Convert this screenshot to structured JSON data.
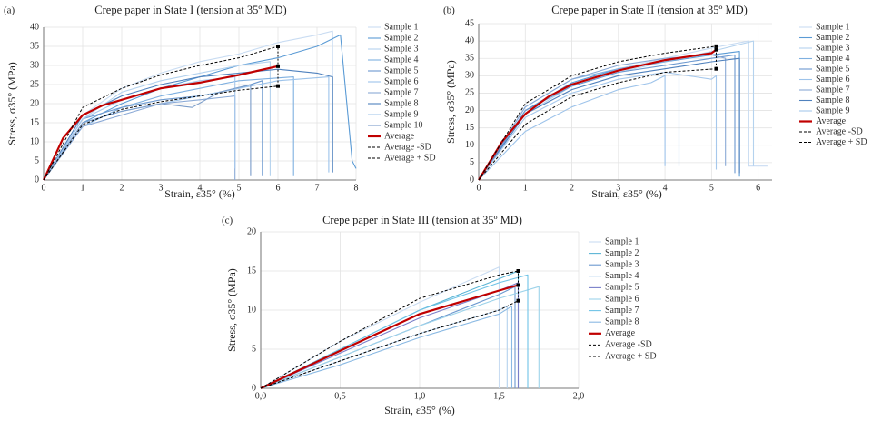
{
  "chart_data": [
    {
      "type": "line",
      "panel_label": "(a)",
      "title": "Crepe paper in State I (tension at 35º MD)",
      "x_label": "Strain, ε35° (%)",
      "y_label": "Stress, σ35° (MPa)",
      "xlim": [
        0,
        8
      ],
      "ylim": [
        0,
        40
      ],
      "xticks": [
        0,
        1,
        2,
        3,
        4,
        5,
        6,
        7,
        8
      ],
      "yticks": [
        0,
        5,
        10,
        15,
        20,
        25,
        30,
        35,
        40
      ],
      "grid": true,
      "series": [
        {
          "name": "Sample 1",
          "color": "#c9dcf2",
          "x": [
            0,
            1,
            2,
            3,
            4,
            5,
            6,
            7,
            7.4,
            7.4
          ],
          "values": [
            0,
            17,
            24,
            28,
            31,
            33,
            36,
            38,
            39,
            2
          ]
        },
        {
          "name": "Sample 2",
          "color": "#5b9bd5",
          "x": [
            0,
            1,
            2,
            3,
            4,
            5,
            6,
            7,
            7.6,
            7.9,
            8
          ],
          "values": [
            0,
            15,
            20,
            24,
            27,
            30,
            32,
            35,
            38,
            5,
            3
          ]
        },
        {
          "name": "Sample 3",
          "color": "#b4d2ee",
          "x": [
            0,
            1,
            2,
            3,
            4,
            5,
            5.8,
            5.8
          ],
          "values": [
            0,
            16,
            23,
            26,
            28,
            30,
            31,
            1
          ]
        },
        {
          "name": "Sample 4",
          "color": "#7fb0e0",
          "x": [
            0,
            1,
            2,
            3,
            4,
            5,
            6.4,
            6.4
          ],
          "values": [
            0,
            14,
            19,
            22,
            24,
            26,
            27,
            1
          ]
        },
        {
          "name": "Sample 5",
          "color": "#6b98cf",
          "x": [
            0,
            1,
            2,
            3,
            4,
            5,
            5.6,
            5.6
          ],
          "values": [
            0,
            16,
            19,
            21,
            22,
            24,
            26,
            1
          ]
        },
        {
          "name": "Sample 6",
          "color": "#9dc3ea",
          "x": [
            0,
            1,
            2,
            3,
            4,
            5,
            6,
            7.3,
            7.3
          ],
          "values": [
            0,
            15,
            18,
            20,
            22,
            24,
            26,
            27,
            2
          ]
        },
        {
          "name": "Sample 7",
          "color": "#8aa9d6",
          "x": [
            0,
            1,
            2,
            3,
            4,
            4.9,
            4.9
          ],
          "values": [
            0,
            14,
            17,
            20,
            21,
            22,
            0
          ]
        },
        {
          "name": "Sample 8",
          "color": "#4f81bd",
          "x": [
            0,
            1,
            2,
            3,
            4,
            5,
            6,
            7,
            7.4,
            7.4
          ],
          "values": [
            0,
            17,
            22,
            25,
            27,
            28,
            29,
            28,
            27,
            2
          ]
        },
        {
          "name": "Sample 9",
          "color": "#a6c8ec",
          "x": [
            0,
            1,
            2,
            3,
            4,
            4.9,
            4.9
          ],
          "values": [
            0,
            16,
            21,
            24,
            26,
            27,
            3
          ]
        },
        {
          "name": "Sample 10",
          "color": "#7a9cc9",
          "x": [
            0,
            1,
            2,
            3,
            3.8,
            4.5,
            5.3,
            5.3
          ],
          "values": [
            0,
            15,
            18,
            20,
            19,
            23,
            25,
            1
          ]
        },
        {
          "name": "Average",
          "color": "#c00000",
          "x": [
            0,
            0.5,
            1,
            1.5,
            2,
            3,
            4,
            5,
            6
          ],
          "values": [
            0,
            11,
            17,
            19.5,
            21,
            24,
            25.5,
            27.5,
            29.8
          ]
        },
        {
          "name": "Average -SD",
          "color": "#000000",
          "x": [
            0,
            1,
            2,
            3,
            4,
            5,
            6
          ],
          "values": [
            0,
            14.5,
            18.5,
            20.5,
            22,
            23.5,
            24.6
          ]
        },
        {
          "name": "Average + SD",
          "color": "#000000",
          "x": [
            0,
            1,
            2,
            3,
            4,
            5,
            6
          ],
          "values": [
            0,
            19,
            24,
            27.5,
            30,
            32,
            35
          ]
        }
      ]
    },
    {
      "type": "line",
      "panel_label": "(b)",
      "title": "Crepe paper in State II (tension at 35º MD)",
      "x_label": "Strain, ε35° (%)",
      "y_label": "Stress, σ35° (MPa)",
      "xlim": [
        0,
        6.3
      ],
      "ylim": [
        0,
        45
      ],
      "xticks": [
        0,
        1,
        2,
        3,
        4,
        5,
        6
      ],
      "yticks": [
        0,
        5,
        10,
        15,
        20,
        25,
        30,
        35,
        40,
        45
      ],
      "grid": true,
      "series": [
        {
          "name": "Sample 1",
          "color": "#c9dcf2",
          "x": [
            0,
            1,
            2,
            3,
            4,
            5,
            5.8,
            5.8,
            6.2
          ],
          "values": [
            0,
            20,
            28,
            32,
            35,
            38,
            40,
            4,
            4
          ]
        },
        {
          "name": "Sample 2",
          "color": "#5b9bd5",
          "x": [
            0,
            1,
            2,
            3,
            4,
            5,
            5.6,
            5.6
          ],
          "values": [
            0,
            20,
            28,
            32,
            34,
            36,
            37,
            1
          ]
        },
        {
          "name": "Sample 3",
          "color": "#b4d2ee",
          "x": [
            0,
            1,
            2,
            3,
            4,
            5,
            5.9,
            5.9
          ],
          "values": [
            0,
            19,
            27,
            31,
            34,
            37,
            40,
            4
          ]
        },
        {
          "name": "Sample 4",
          "color": "#7fb0e0",
          "x": [
            0,
            1,
            2,
            3,
            4,
            4.3,
            4.3
          ],
          "values": [
            0,
            21,
            29,
            32,
            34,
            35,
            4
          ]
        },
        {
          "name": "Sample 5",
          "color": "#6b98cf",
          "x": [
            0,
            1,
            2,
            3,
            4,
            5,
            5.5,
            5.5
          ],
          "values": [
            0,
            20,
            27,
            31,
            33,
            35,
            36,
            2
          ]
        },
        {
          "name": "Sample 6",
          "color": "#9dc3ea",
          "x": [
            0,
            1,
            2,
            3,
            3.7,
            4,
            4
          ],
          "values": [
            0,
            14,
            21,
            26,
            28,
            30,
            4
          ]
        },
        {
          "name": "Sample 7",
          "color": "#8aa9d6",
          "x": [
            0,
            1,
            2,
            3,
            4,
            5,
            5.3,
            5.3
          ],
          "values": [
            0,
            21,
            29,
            33,
            35,
            36,
            35,
            4
          ]
        },
        {
          "name": "Sample 8",
          "color": "#4f81bd",
          "x": [
            0,
            1,
            2,
            3,
            4,
            5,
            5.6,
            5.6
          ],
          "values": [
            0,
            19,
            26,
            30,
            32,
            34,
            35,
            2
          ]
        },
        {
          "name": "Sample 9",
          "color": "#a6c8ec",
          "x": [
            0,
            1,
            2,
            3,
            4,
            5,
            5.1,
            5.1
          ],
          "values": [
            0,
            18,
            25,
            29,
            31,
            29,
            30,
            3
          ]
        },
        {
          "name": "Average",
          "color": "#c00000",
          "x": [
            0,
            0.5,
            1,
            1.5,
            2,
            3,
            4,
            5,
            5.1
          ],
          "values": [
            0,
            11,
            19,
            24,
            27.5,
            31.5,
            34.5,
            36.5,
            37.5
          ]
        },
        {
          "name": "Average -SD",
          "color": "#000000",
          "x": [
            0,
            1,
            2,
            3,
            4,
            5.1
          ],
          "values": [
            0,
            16,
            24,
            28,
            31,
            32
          ]
        },
        {
          "name": "Average + SD",
          "color": "#000000",
          "x": [
            0,
            1,
            2,
            3,
            4,
            5.1
          ],
          "values": [
            0,
            22,
            30,
            34,
            36.5,
            38.5
          ]
        }
      ]
    },
    {
      "type": "line",
      "panel_label": "(c)",
      "title": "Crepe paper in State III (tension at 35º MD)",
      "x_label": "Strain, ε35° (%)",
      "y_label": "Stress, σ35° (MPa)",
      "xlim": [
        0,
        2
      ],
      "ylim": [
        0,
        20
      ],
      "xticks": [
        {
          "value": 0,
          "label": "0,0"
        },
        {
          "value": 0.5,
          "label": "0,5"
        },
        {
          "value": 1,
          "label": "1,0"
        },
        {
          "value": 1.5,
          "label": "1,5"
        },
        {
          "value": 2,
          "label": "2,0"
        }
      ],
      "yticks": [
        0,
        5,
        10,
        15,
        20
      ],
      "grid": true,
      "series": [
        {
          "name": "Sample 1",
          "color": "#c9dcf2",
          "x": [
            0,
            0.5,
            1,
            1.5,
            1.5
          ],
          "values": [
            0,
            6,
            11,
            15.5,
            0
          ]
        },
        {
          "name": "Sample 2",
          "color": "#5bb5d5",
          "x": [
            0,
            0.5,
            1,
            1.5,
            1.62,
            1.62
          ],
          "values": [
            0,
            5,
            10,
            14,
            15,
            0
          ]
        },
        {
          "name": "Sample 3",
          "color": "#6b98cf",
          "x": [
            0,
            0.5,
            1,
            1.5,
            1.6,
            1.6
          ],
          "values": [
            0,
            4,
            8,
            12,
            13,
            0
          ]
        },
        {
          "name": "Sample 4",
          "color": "#b4d2ee",
          "x": [
            0,
            0.5,
            1,
            1.5,
            1.55,
            1.55
          ],
          "values": [
            0,
            3.5,
            7,
            10,
            10.5,
            0
          ]
        },
        {
          "name": "Sample 5",
          "color": "#7a7fc9",
          "x": [
            0,
            0.5,
            1,
            1.5,
            1.62,
            1.62
          ],
          "values": [
            0,
            4.5,
            9,
            12.5,
            13.5,
            0
          ]
        },
        {
          "name": "Sample 6",
          "color": "#9dd3ea",
          "x": [
            0,
            0.5,
            1,
            1.5,
            1.75,
            1.75
          ],
          "values": [
            0,
            4,
            8,
            11.5,
            13,
            0
          ]
        },
        {
          "name": "Sample 7",
          "color": "#6fc3e6",
          "x": [
            0,
            0.5,
            1,
            1.5,
            1.68,
            1.68
          ],
          "values": [
            0,
            5,
            10,
            13.5,
            14.5,
            0
          ]
        },
        {
          "name": "Sample 8",
          "color": "#8ab9e3",
          "x": [
            0,
            0.5,
            1,
            1.5,
            1.58,
            1.58
          ],
          "values": [
            0,
            3,
            6.5,
            9.5,
            10.5,
            0
          ]
        },
        {
          "name": "Average",
          "color": "#c00000",
          "x": [
            0,
            0.5,
            1,
            1.5,
            1.62
          ],
          "values": [
            0,
            4.8,
            9.5,
            12.5,
            13.2
          ]
        },
        {
          "name": "Average -SD",
          "color": "#000000",
          "x": [
            0,
            0.5,
            1,
            1.5,
            1.62
          ],
          "values": [
            0,
            3.5,
            7,
            10,
            11.2
          ]
        },
        {
          "name": "Average + SD",
          "color": "#000000",
          "x": [
            0,
            0.5,
            1,
            1.5,
            1.62
          ],
          "values": [
            0,
            6,
            11.5,
            14.5,
            15
          ]
        }
      ]
    }
  ]
}
